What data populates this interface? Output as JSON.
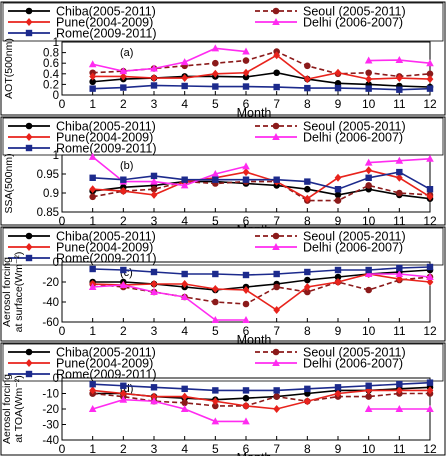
{
  "colors": {
    "Chiba": "#000000",
    "Seoul": "#8b1a1a",
    "Pune": "#e8231c",
    "Delhi": "#ff2bf0",
    "Rome": "#1c2a8c"
  },
  "legend": {
    "Chiba": "Chiba(2005-2011)",
    "Seoul": "Seoul (2005-2011)",
    "Pune": "Pune(2004-2009)",
    "Delhi": "Delhi (2006-2007)",
    "Rome": "Rome(2009-2011)"
  },
  "chart_data": [
    {
      "type": "line",
      "panel_label": "(a)",
      "xlabel": "Month",
      "ylabel": "AOT(500nm)",
      "xlim": [
        0,
        12
      ],
      "ylim": [
        0,
        1
      ],
      "xticks": [
        0,
        1,
        2,
        3,
        4,
        5,
        6,
        7,
        8,
        9,
        10,
        11,
        12
      ],
      "yticks": [
        "0",
        "0.2",
        "0.4",
        "0.6",
        "0.8",
        "1"
      ],
      "series": [
        {
          "name": "Chiba",
          "x": [
            1,
            2,
            3,
            4,
            5,
            6,
            7,
            8,
            9,
            10,
            11,
            12
          ],
          "y": [
            0.25,
            0.3,
            0.32,
            0.35,
            0.35,
            0.34,
            0.42,
            0.3,
            0.22,
            0.2,
            0.17,
            0.15
          ]
        },
        {
          "name": "Seoul",
          "x": [
            1,
            2,
            3,
            4,
            5,
            6,
            7,
            8,
            9,
            10,
            11,
            12
          ],
          "y": [
            0.42,
            0.45,
            0.5,
            0.55,
            0.6,
            0.65,
            0.82,
            0.55,
            0.4,
            0.42,
            0.35,
            0.4
          ]
        },
        {
          "name": "Pune",
          "x": [
            1,
            2,
            3,
            4,
            5,
            6,
            7,
            8,
            9,
            10,
            11,
            12
          ],
          "y": [
            0.35,
            0.35,
            0.32,
            0.32,
            0.4,
            0.42,
            0.75,
            0.3,
            0.42,
            0.3,
            0.32,
            0.3
          ]
        },
        {
          "name": "Delhi",
          "x": [
            1,
            2,
            3,
            4,
            5,
            6,
            10,
            11,
            12
          ],
          "y": [
            0.58,
            0.45,
            0.5,
            0.62,
            0.88,
            0.82,
            0.65,
            0.66,
            0.6
          ]
        },
        {
          "name": "Rome",
          "x": [
            1,
            2,
            3,
            4,
            5,
            6,
            7,
            8,
            9,
            10,
            11,
            12
          ],
          "y": [
            0.12,
            0.14,
            0.18,
            0.17,
            0.16,
            0.16,
            0.15,
            0.13,
            0.13,
            0.12,
            0.1,
            0.12
          ]
        }
      ]
    },
    {
      "type": "line",
      "panel_label": "(b)",
      "xlabel": "Month",
      "ylabel": "SSA(500nm)",
      "xlim": [
        0,
        12
      ],
      "ylim": [
        0.85,
        1
      ],
      "xticks": [
        0,
        1,
        2,
        3,
        4,
        5,
        6,
        7,
        8,
        9,
        10,
        11,
        12
      ],
      "yticks": [
        "0.85",
        "0.9",
        "0.95",
        "1"
      ],
      "series": [
        {
          "name": "Chiba",
          "x": [
            1,
            2,
            3,
            4,
            5,
            6,
            7,
            8,
            9,
            10,
            11,
            12
          ],
          "y": [
            0.905,
            0.915,
            0.92,
            0.93,
            0.93,
            0.925,
            0.92,
            0.91,
            0.895,
            0.91,
            0.895,
            0.885
          ]
        },
        {
          "name": "Seoul",
          "x": [
            1,
            2,
            3,
            4,
            5,
            6,
            7,
            8,
            9,
            10,
            11,
            12
          ],
          "y": [
            0.89,
            0.905,
            0.91,
            0.93,
            0.925,
            0.93,
            0.93,
            0.88,
            0.88,
            0.92,
            0.9,
            0.895
          ]
        },
        {
          "name": "Pune",
          "x": [
            1,
            2,
            3,
            4,
            5,
            6,
            7,
            8,
            9,
            10,
            11,
            12
          ],
          "y": [
            0.91,
            0.905,
            0.895,
            0.93,
            0.94,
            0.955,
            0.93,
            0.885,
            0.94,
            0.96,
            0.94,
            0.89
          ]
        },
        {
          "name": "Delhi",
          "x": [
            1,
            2,
            3,
            4,
            5,
            6,
            10,
            11,
            12
          ],
          "y": [
            0.995,
            0.93,
            0.93,
            0.92,
            0.95,
            0.97,
            0.98,
            0.985,
            0.99
          ]
        },
        {
          "name": "Rome",
          "x": [
            1,
            2,
            3,
            4,
            5,
            6,
            7,
            8,
            9,
            10,
            11,
            12
          ],
          "y": [
            0.94,
            0.935,
            0.945,
            0.935,
            0.935,
            0.935,
            0.935,
            0.93,
            0.91,
            0.94,
            0.955,
            0.91
          ]
        }
      ]
    },
    {
      "type": "line",
      "panel_label": "(c)",
      "xlabel": "Month",
      "ylabel_lines": [
        "Aerosol forcing",
        "at surface(Wm⁻²)"
      ],
      "xlim": [
        0,
        12
      ],
      "ylim": [
        -60,
        0
      ],
      "xticks": [
        0,
        1,
        2,
        3,
        4,
        5,
        6,
        7,
        8,
        9,
        10,
        11,
        12
      ],
      "yticks": [
        "-60",
        "-40",
        "-20",
        "0"
      ],
      "series": [
        {
          "name": "Chiba",
          "x": [
            1,
            2,
            3,
            4,
            5,
            6,
            7,
            8,
            9,
            10,
            11,
            12
          ],
          "y": [
            -20,
            -20,
            -22,
            -25,
            -28,
            -25,
            -22,
            -18,
            -15,
            -12,
            -10,
            -8
          ]
        },
        {
          "name": "Seoul",
          "x": [
            1,
            2,
            3,
            4,
            5,
            6,
            7,
            8,
            9,
            10,
            11,
            12
          ],
          "y": [
            -22,
            -25,
            -30,
            -35,
            -40,
            -42,
            -25,
            -30,
            -20,
            -28,
            -18,
            -15
          ]
        },
        {
          "name": "Pune",
          "x": [
            1,
            2,
            3,
            4,
            5,
            6,
            7,
            8,
            9,
            10,
            11,
            12
          ],
          "y": [
            -22,
            -23,
            -22,
            -22,
            -27,
            -28,
            -48,
            -25,
            -20,
            -12,
            -17,
            -20
          ]
        },
        {
          "name": "Delhi",
          "x": [
            1,
            2,
            3,
            4,
            5,
            6,
            10,
            11,
            12
          ],
          "y": [
            -25,
            -23,
            -30,
            -35,
            -58,
            -58,
            -12,
            -12,
            -15
          ]
        },
        {
          "name": "Rome",
          "x": [
            1,
            2,
            3,
            4,
            5,
            6,
            7,
            8,
            9,
            10,
            11,
            12
          ],
          "y": [
            -7,
            -8,
            -10,
            -12,
            -12,
            -13,
            -12,
            -10,
            -8,
            -8,
            -6,
            -5
          ]
        }
      ]
    },
    {
      "type": "line",
      "panel_label": "(d)",
      "xlabel": "Month",
      "ylabel_lines": [
        "Aerosol forcing",
        "at TOA(Wm⁻²)"
      ],
      "xlim": [
        0,
        12
      ],
      "ylim": [
        -40,
        0
      ],
      "xticks": [
        0,
        1,
        2,
        3,
        4,
        5,
        6,
        7,
        8,
        9,
        10,
        11,
        12
      ],
      "yticks": [
        "-40",
        "-30",
        "-20",
        "-10",
        "0"
      ],
      "series": [
        {
          "name": "Chiba",
          "x": [
            1,
            2,
            3,
            4,
            5,
            6,
            7,
            8,
            9,
            10,
            11,
            12
          ],
          "y": [
            -10,
            -10,
            -12,
            -13,
            -14,
            -13,
            -12,
            -10,
            -8,
            -8,
            -7,
            -6
          ]
        },
        {
          "name": "Seoul",
          "x": [
            1,
            2,
            3,
            4,
            5,
            6,
            7,
            8,
            9,
            10,
            11,
            12
          ],
          "y": [
            -10,
            -12,
            -15,
            -16,
            -18,
            -18,
            -12,
            -15,
            -12,
            -12,
            -10,
            -10
          ]
        },
        {
          "name": "Pune",
          "x": [
            1,
            2,
            3,
            4,
            5,
            6,
            7,
            8,
            9,
            10,
            11,
            12
          ],
          "y": [
            -8,
            -10,
            -12,
            -12,
            -15,
            -18,
            -20,
            -15,
            -10,
            -8,
            -8,
            -8
          ]
        },
        {
          "name": "Delhi",
          "x": [
            1,
            2,
            3,
            4,
            5,
            6,
            10,
            11,
            12
          ],
          "y": [
            -20,
            -14,
            -15,
            -20,
            -28,
            -28,
            -20,
            -20,
            -20
          ]
        },
        {
          "name": "Rome",
          "x": [
            1,
            2,
            3,
            4,
            5,
            6,
            7,
            8,
            9,
            10,
            11,
            12
          ],
          "y": [
            -4,
            -5,
            -6,
            -7,
            -8,
            -8,
            -8,
            -7,
            -6,
            -5,
            -4,
            -3
          ]
        }
      ]
    }
  ]
}
